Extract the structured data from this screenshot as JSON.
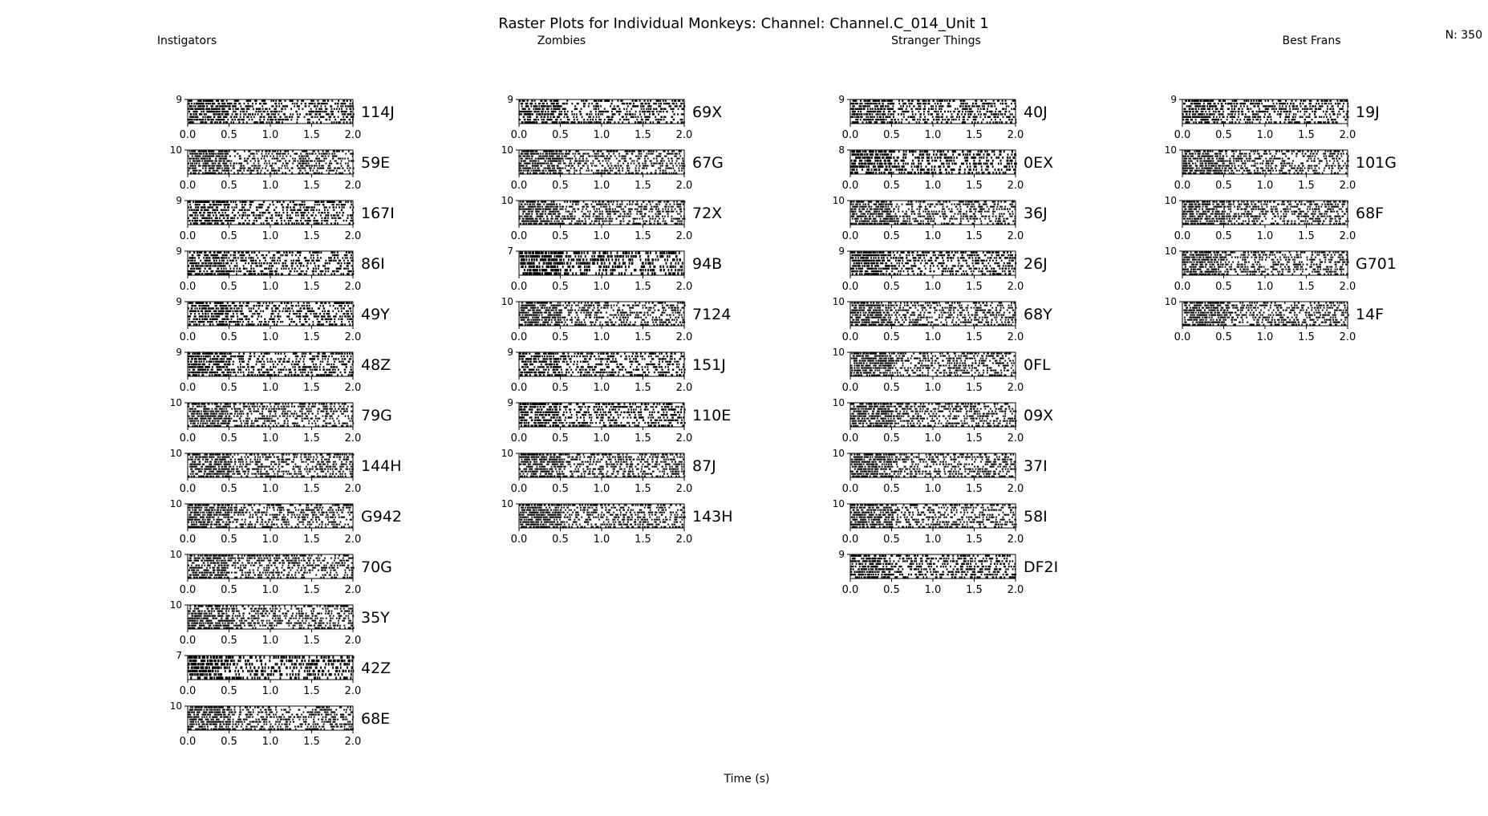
{
  "chart_data": {
    "type": "raster",
    "title": "Raster Plots for Individual Monkeys: Channel: Channel.C_014_Unit 1",
    "xlabel": "Time (s)",
    "annotation": "N: 350",
    "xlim": [
      0.0,
      2.0
    ],
    "xticks": [
      "0.0",
      "0.5",
      "1.0",
      "1.5",
      "2.0"
    ],
    "spike_color": "#000000",
    "groups": [
      {
        "name": "Instigators",
        "panels": [
          {
            "label": "114J",
            "trials": 9
          },
          {
            "label": "59E",
            "trials": 10
          },
          {
            "label": "167I",
            "trials": 9
          },
          {
            "label": "86I",
            "trials": 9
          },
          {
            "label": "49Y",
            "trials": 9
          },
          {
            "label": "48Z",
            "trials": 9
          },
          {
            "label": "79G",
            "trials": 10
          },
          {
            "label": "144H",
            "trials": 10
          },
          {
            "label": "G942",
            "trials": 10
          },
          {
            "label": "70G",
            "trials": 10
          },
          {
            "label": "35Y",
            "trials": 10
          },
          {
            "label": "42Z",
            "trials": 7
          },
          {
            "label": "68E",
            "trials": 10
          }
        ]
      },
      {
        "name": "Zombies",
        "panels": [
          {
            "label": "69X",
            "trials": 9
          },
          {
            "label": "67G",
            "trials": 10
          },
          {
            "label": "72X",
            "trials": 10
          },
          {
            "label": "94B",
            "trials": 7
          },
          {
            "label": "7124",
            "trials": 10
          },
          {
            "label": "151J",
            "trials": 9
          },
          {
            "label": "110E",
            "trials": 9
          },
          {
            "label": "87J",
            "trials": 10
          },
          {
            "label": "143H",
            "trials": 10
          }
        ]
      },
      {
        "name": "Stranger Things",
        "panels": [
          {
            "label": "40J",
            "trials": 9
          },
          {
            "label": "0EX",
            "trials": 8
          },
          {
            "label": "36J",
            "trials": 10
          },
          {
            "label": "26J",
            "trials": 9
          },
          {
            "label": "68Y",
            "trials": 10
          },
          {
            "label": "0FL",
            "trials": 10
          },
          {
            "label": "09X",
            "trials": 10
          },
          {
            "label": "37I",
            "trials": 10
          },
          {
            "label": "58I",
            "trials": 10
          },
          {
            "label": "DF2I",
            "trials": 9
          }
        ]
      },
      {
        "name": "Best Frans",
        "panels": [
          {
            "label": "19J",
            "trials": 9
          },
          {
            "label": "101G",
            "trials": 10
          },
          {
            "label": "68F",
            "trials": 10
          },
          {
            "label": "G701",
            "trials": 10
          },
          {
            "label": "14F",
            "trials": 10
          }
        ]
      }
    ]
  }
}
